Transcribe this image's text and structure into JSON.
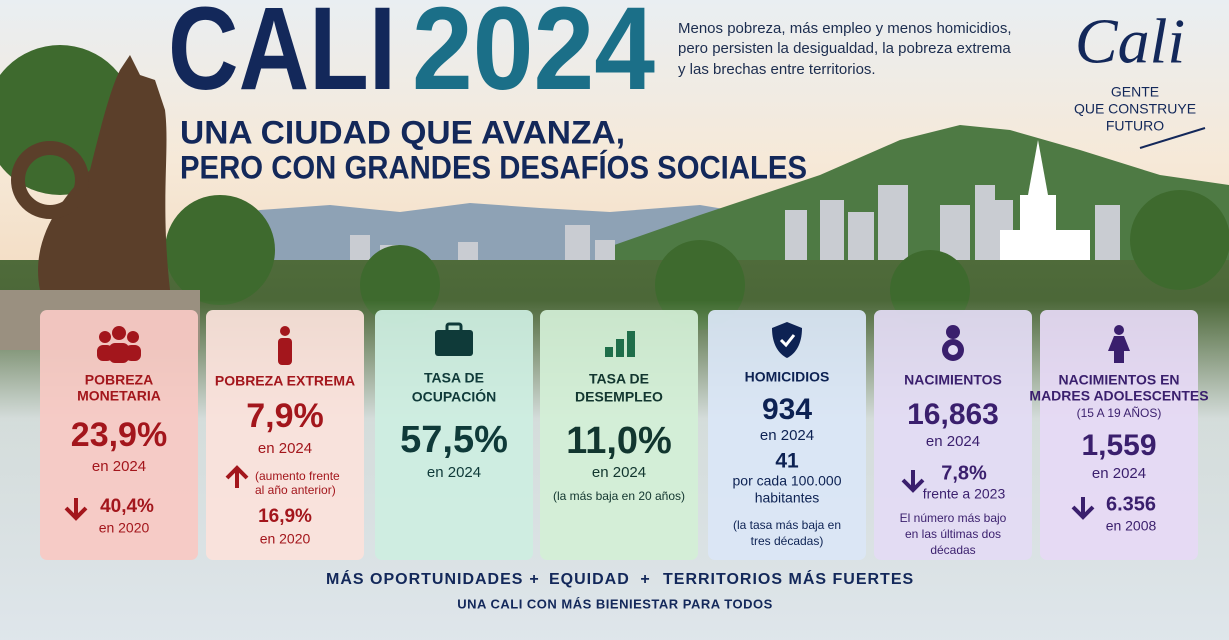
{
  "header": {
    "title_left": "CALI",
    "title_right": "2024",
    "subtitle": [
      "UNA CIUDAD QUE AVANZA,",
      "PERO CON GRANDES DESAFÍOS SOCIALES"
    ],
    "intro": [
      "Menos pobreza, más empleo y menos homicidios,",
      "pero persisten la desigualdad, la pobreza extrema",
      "y las brechas entre territorios."
    ]
  },
  "logo": {
    "script": "Cali",
    "tagline": [
      "GENTE",
      "QUE CONSTRUYE",
      "FUTURO"
    ]
  },
  "cards": [
    {
      "title": [
        "POBREZA",
        "MONETARIA"
      ],
      "value": "23,9%",
      "period": "en 2024",
      "compare_value": "40,4%",
      "compare_period": "en 2020"
    },
    {
      "title": [
        "POBREZA EXTREMA"
      ],
      "value": "7,9%",
      "period": "en 2024",
      "trend_note": [
        "(aumento frente",
        "al año anterior)"
      ],
      "compare_value": "16,9%",
      "compare_period": "en 2020"
    },
    {
      "title": [
        "TASA DE",
        "OCUPACIÓN"
      ],
      "value": "57,5%",
      "period": "en 2024"
    },
    {
      "title": [
        "TASA DE",
        "DESEMPLEO"
      ],
      "value": "11,0%",
      "period": "en 2024",
      "note": [
        "(la más baja en 20 años)"
      ]
    },
    {
      "title": [
        "HOMICIDIOS"
      ],
      "value": "934",
      "period": "en 2024",
      "rate": "41",
      "rate_label": [
        "por cada 100.000",
        "habitantes"
      ],
      "note": [
        "(la tasa más baja en",
        "tres décadas)"
      ]
    },
    {
      "title": [
        "NACIMIENTOS"
      ],
      "value": "16,863",
      "period": "en 2024",
      "compare_value": "7,8%",
      "compare_period": "frente a 2023",
      "note": [
        "El número más bajo",
        "en las últimas dos",
        "décadas"
      ]
    },
    {
      "title": [
        "NACIMIENTOS EN",
        "MADRES ADOLESCENTES"
      ],
      "subtitle": "(15 A 19 AÑOS)",
      "value": "1,559",
      "period": "en 2024",
      "compare_value": "6.356",
      "compare_period": "en 2008"
    }
  ],
  "footer": {
    "pillars": [
      "MÁS OPORTUNIDADES",
      "+",
      "EQUIDAD",
      "+",
      "TERRITORIOS MÁS FUERTES"
    ],
    "tagline": "UNA CALI CON MÁS BIENIESTAR PARA TODOS"
  }
}
